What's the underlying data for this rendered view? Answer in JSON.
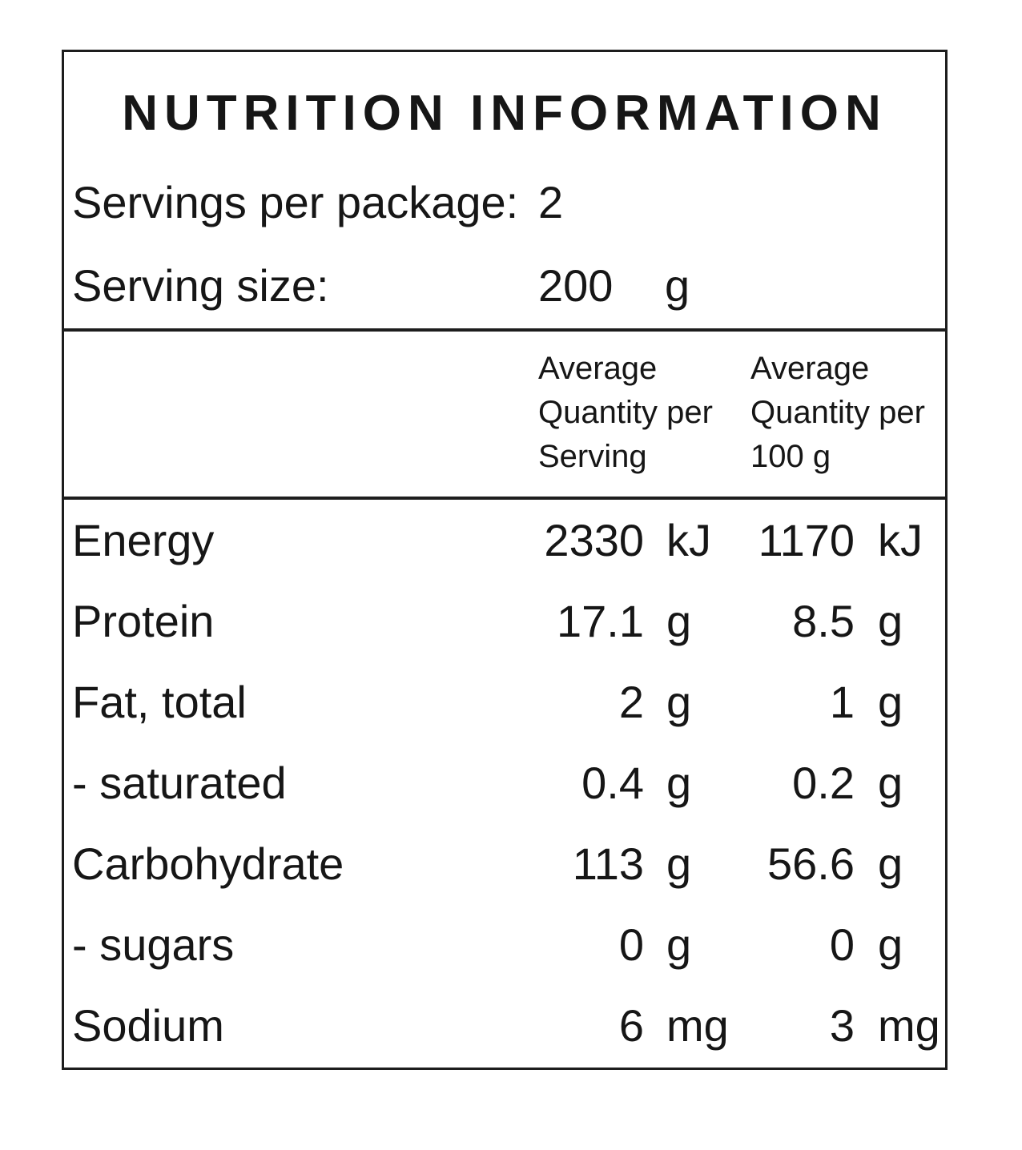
{
  "title": "NUTRITION INFORMATION",
  "package_info": {
    "servings_label": "Servings per package:",
    "servings_value": "2",
    "serving_size_label": "Serving size:",
    "serving_size_value": "200",
    "serving_size_unit": "g"
  },
  "column_headers": {
    "per_serving": [
      "Average",
      "Quantity per",
      "Serving"
    ],
    "per_100g": [
      "Average",
      "Quantity per",
      "100 g"
    ]
  },
  "rows": [
    {
      "label": "Energy",
      "per_serving": "2330",
      "per_serving_unit": "kJ",
      "per_100g": "1170",
      "per_100g_unit": "kJ"
    },
    {
      "label": "Protein",
      "per_serving": "17.1",
      "per_serving_unit": "g",
      "per_100g": "8.5",
      "per_100g_unit": "g"
    },
    {
      "label": "Fat, total",
      "per_serving": "2",
      "per_serving_unit": "g",
      "per_100g": "1",
      "per_100g_unit": "g"
    },
    {
      "label": "- saturated",
      "per_serving": "0.4",
      "per_serving_unit": "g",
      "per_100g": "0.2",
      "per_100g_unit": "g"
    },
    {
      "label": "Carbohydrate",
      "per_serving": "113",
      "per_serving_unit": "g",
      "per_100g": "56.6",
      "per_100g_unit": "g"
    },
    {
      "label": "- sugars",
      "per_serving": "0",
      "per_serving_unit": "g",
      "per_100g": "0",
      "per_100g_unit": "g"
    },
    {
      "label": "Sodium",
      "per_serving": "6",
      "per_serving_unit": "mg",
      "per_100g": "3",
      "per_100g_unit": "mg"
    }
  ],
  "colors": {
    "text": "#161616",
    "border": "#1d1d1d",
    "background": "#ffffff"
  }
}
